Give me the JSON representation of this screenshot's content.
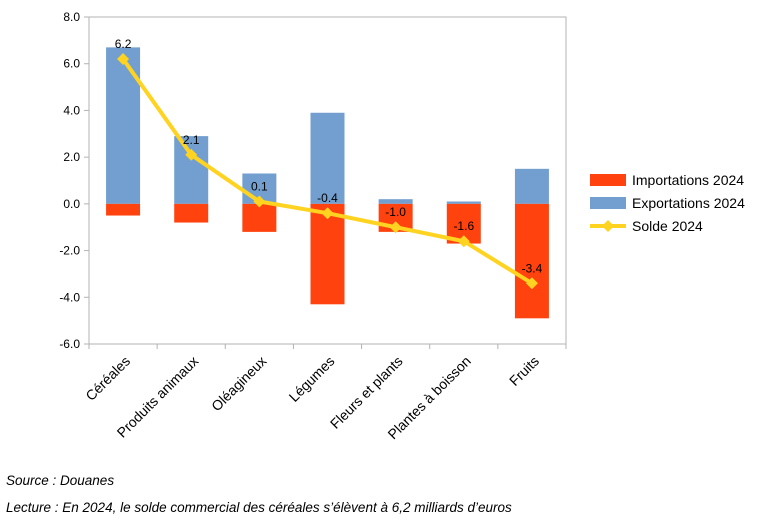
{
  "chart_data": {
    "type": "bar",
    "categories": [
      "Céréales",
      "Produits animaux",
      "Oléagineux",
      "Légumes",
      "Fleurs et plants",
      "Plantes à boisson",
      "Fruits"
    ],
    "series": [
      {
        "name": "Importations 2024",
        "kind": "bar",
        "color": "#ff420e",
        "values": [
          -0.5,
          -0.8,
          -1.2,
          -4.3,
          -1.2,
          -1.7,
          -4.9
        ]
      },
      {
        "name": "Exportations 2024",
        "kind": "bar",
        "color": "#729fcf",
        "values": [
          6.7,
          2.9,
          1.3,
          3.9,
          0.2,
          0.1,
          1.5
        ]
      },
      {
        "name": "Solde 2024",
        "kind": "line",
        "color": "#ffd320",
        "marker": "diamond",
        "values": [
          6.2,
          2.1,
          0.1,
          -0.4,
          -1.0,
          -1.6,
          -3.4
        ]
      }
    ],
    "data_labels": [
      "6.2",
      "2.1",
      "0.1",
      "-0.4",
      "-1.0",
      "-1.6",
      "-3.4"
    ],
    "stacked": true,
    "ylim": [
      -6,
      8
    ],
    "yticks": [
      "8.0",
      "6.0",
      "4.0",
      "2.0",
      "0.0",
      "-2.0",
      "-4.0",
      "-6.0"
    ],
    "grid": false,
    "legend_position": "right",
    "title": "",
    "xlabel": "",
    "ylabel": ""
  },
  "footer": {
    "source": "Source : Douanes",
    "reading": "Lecture : En 2024, le solde commercial des céréales s’élèvent à 6,2 milliards d’euros"
  }
}
